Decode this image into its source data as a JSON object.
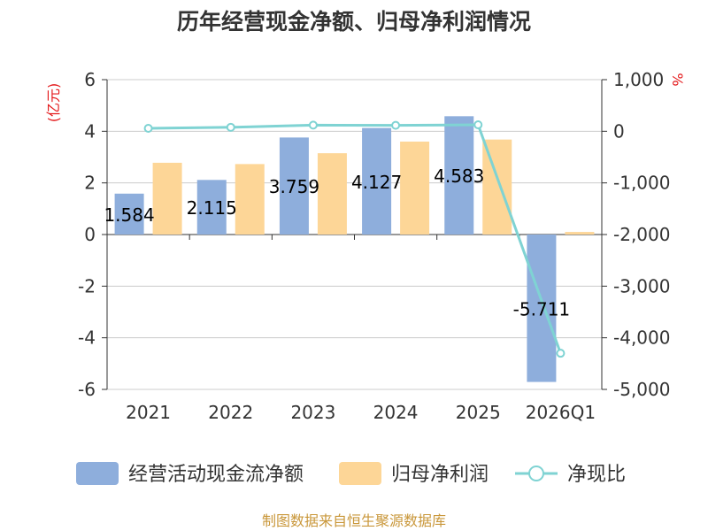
{
  "chart_data": {
    "type": "bar",
    "title": "历年经营现金净额、归母净利润情况",
    "categories": [
      "2021",
      "2022",
      "2023",
      "2024",
      "2025",
      "2026Q1"
    ],
    "left_axis_unit": "(亿元)",
    "right_axis_unit": "%",
    "ylim_left": [
      -6,
      6
    ],
    "yticks_left": [
      "6",
      "4",
      "2",
      "0",
      "-2",
      "-4",
      "-6"
    ],
    "ylim_right": [
      -5000,
      1000
    ],
    "yticks_right": [
      "1,000",
      "0",
      "-1,000",
      "-2,000",
      "-3,000",
      "-4,000",
      "-5,000"
    ],
    "grid": true,
    "legend_position": "bottom",
    "series": [
      {
        "name": "经营活动现金流净额",
        "kind": "bar",
        "axis": "left",
        "color": "#8eaedc",
        "values": [
          1.584,
          2.115,
          3.759,
          4.127,
          4.583,
          -5.711
        ],
        "labels": [
          "1.584",
          "2.115",
          "3.759",
          "4.127",
          "4.583",
          "-5.711"
        ]
      },
      {
        "name": "归母净利润",
        "kind": "bar",
        "axis": "left",
        "color": "#fdd697",
        "values": [
          2.78,
          2.73,
          3.15,
          3.6,
          3.68,
          0.1
        ]
      },
      {
        "name": "净现比",
        "kind": "line",
        "axis": "right",
        "color": "#7fd3d3",
        "values": [
          57,
          77,
          119,
          115,
          125,
          -4300
        ]
      }
    ],
    "source": "制图数据来自恒生聚源数据库"
  }
}
